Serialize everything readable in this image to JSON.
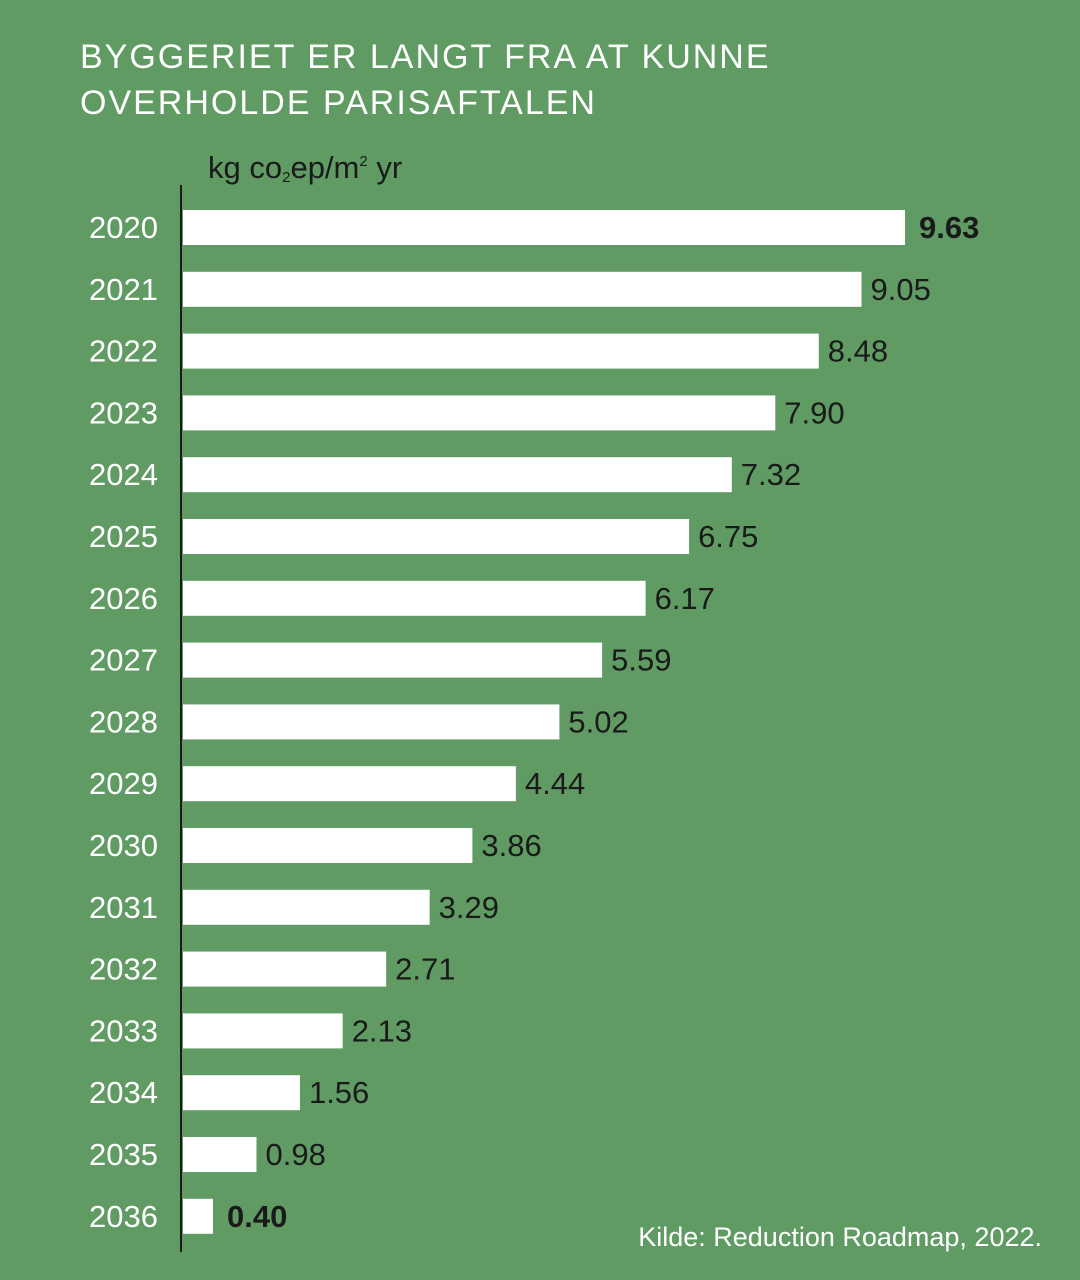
{
  "title_lines": [
    "BYGGERIET ER LANGT FRA AT KUNNE",
    "OVERHOLDE PARISAFTALEN"
  ],
  "unit_label": {
    "pre": "kg co",
    "sub": "2",
    "mid": "ep/m",
    "sup": "2",
    "post": " yr"
  },
  "source": "Kilde: Reduction Roadmap, 2022.",
  "colors": {
    "background": "#5f9b63",
    "bar": "#ffffff",
    "axis": "#1a1a1a",
    "category_text": "#ffffff",
    "value_text": "#1a1a1a"
  },
  "chart_data": {
    "type": "bar",
    "orientation": "horizontal",
    "categories": [
      "2020",
      "2021",
      "2022",
      "2023",
      "2024",
      "2025",
      "2026",
      "2027",
      "2028",
      "2029",
      "2030",
      "2031",
      "2032",
      "2033",
      "2034",
      "2035",
      "2036"
    ],
    "values": [
      9.63,
      9.05,
      8.48,
      7.9,
      7.32,
      6.75,
      6.17,
      5.59,
      5.02,
      4.44,
      3.86,
      3.29,
      2.71,
      2.13,
      1.56,
      0.98,
      0.4
    ],
    "value_labels": [
      "9.63",
      "9.05",
      "8.48",
      "7.90",
      "7.32",
      "6.75",
      "6.17",
      "5.59",
      "5.02",
      "4.44",
      "3.86",
      "3.29",
      "2.71",
      "2.13",
      "1.56",
      "0.98",
      "0.40"
    ],
    "bold_labels": [
      "2020",
      "2036"
    ],
    "xlim": [
      0,
      9.63
    ],
    "grid": false,
    "legend": "none"
  }
}
